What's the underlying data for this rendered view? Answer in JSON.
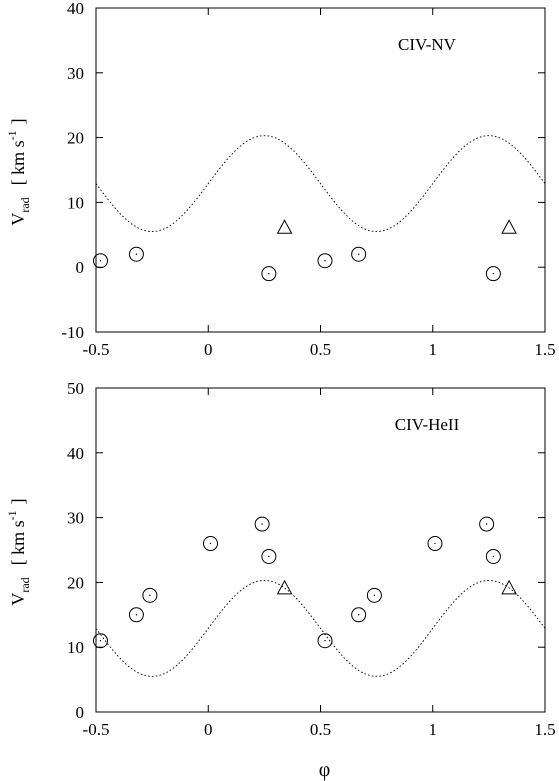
{
  "chart_data": [
    {
      "type": "scatter",
      "annotation": "CIV-NV",
      "xlabel": "",
      "ylabel": {
        "main": "V",
        "sub": "rad",
        "units": "[ km s",
        "exp": "-1",
        "close": "]"
      },
      "xlim": [
        -0.5,
        1.5
      ],
      "ylim": [
        -10,
        40
      ],
      "xticks": [
        -0.5,
        0,
        0.5,
        1,
        1.5
      ],
      "xtick_labels": [
        "-0.5",
        "0",
        "0.5",
        "1",
        "1.5"
      ],
      "yticks": [
        -10,
        0,
        10,
        20,
        30,
        40
      ],
      "ytick_labels": [
        "-10",
        "0",
        "10",
        "20",
        "30",
        "40"
      ],
      "grid": false,
      "curve": {
        "style": "dotted",
        "model": "sine",
        "mean": 12.9,
        "amplitude": 7.4,
        "period": 1,
        "phase_of_max": 0.25
      },
      "series": [
        {
          "marker": "circle",
          "x": [
            -0.48,
            -0.32,
            0.27,
            0.52,
            0.67,
            1.27
          ],
          "y": [
            1,
            2,
            -1,
            1,
            2,
            -1
          ]
        },
        {
          "marker": "triangle",
          "x": [
            0.34,
            1.34
          ],
          "y": [
            6,
            6
          ]
        }
      ]
    },
    {
      "type": "scatter",
      "annotation": "CIV-HeII",
      "xlabel": "φ",
      "ylabel": {
        "main": "V",
        "sub": "rad",
        "units": "[ km s",
        "exp": "-1",
        "close": "]"
      },
      "xlim": [
        -0.5,
        1.5
      ],
      "ylim": [
        0,
        50
      ],
      "xticks": [
        -0.5,
        0,
        0.5,
        1,
        1.5
      ],
      "xtick_labels": [
        "-0.5",
        "0",
        "0.5",
        "1",
        "1.5"
      ],
      "yticks": [
        0,
        10,
        20,
        30,
        40,
        50
      ],
      "ytick_labels": [
        "0",
        "10",
        "20",
        "30",
        "40",
        "50"
      ],
      "grid": false,
      "curve": {
        "style": "dotted",
        "model": "sine",
        "mean": 12.9,
        "amplitude": 7.4,
        "period": 1,
        "phase_of_max": 0.25
      },
      "series": [
        {
          "marker": "circle",
          "x": [
            -0.48,
            -0.32,
            -0.26,
            0.01,
            0.24,
            0.27,
            0.52,
            0.67,
            0.74,
            1.01,
            1.24,
            1.27
          ],
          "y": [
            11,
            15,
            18,
            26,
            29,
            24,
            11,
            15,
            18,
            26,
            29,
            24
          ]
        },
        {
          "marker": "triangle",
          "x": [
            0.34,
            1.34
          ],
          "y": [
            19,
            19
          ]
        }
      ]
    }
  ]
}
